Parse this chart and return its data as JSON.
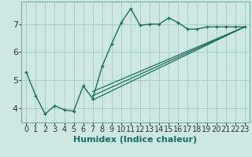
{
  "xlabel": "Humidex (Indice chaleur)",
  "background_color": "#cde8e2",
  "grid_color": "#a8ccc8",
  "line_color": "#1a6e60",
  "xlim": [
    -0.5,
    23.5
  ],
  "ylim": [
    3.5,
    7.8
  ],
  "yticks": [
    4,
    5,
    6,
    7
  ],
  "xticks": [
    0,
    1,
    2,
    3,
    4,
    5,
    6,
    7,
    8,
    9,
    10,
    11,
    12,
    13,
    14,
    15,
    16,
    17,
    18,
    19,
    20,
    21,
    22,
    23
  ],
  "curve1_x": [
    0,
    1,
    2,
    3,
    4,
    5,
    6,
    7,
    8,
    9,
    10,
    11,
    12,
    13,
    14,
    15,
    16,
    17,
    18,
    19,
    20,
    21,
    22,
    23
  ],
  "curve1_y": [
    5.3,
    4.45,
    3.8,
    4.1,
    3.95,
    3.9,
    4.8,
    4.35,
    5.5,
    6.3,
    7.05,
    7.55,
    6.95,
    7.0,
    7.0,
    7.22,
    7.05,
    6.82,
    6.82,
    6.9,
    6.9,
    6.9,
    6.9,
    6.9
  ],
  "curve2_x": [
    7,
    23
  ],
  "curve2_y": [
    4.6,
    6.9
  ],
  "curve3_x": [
    7,
    23
  ],
  "curve3_y": [
    4.45,
    6.9
  ],
  "curve4_x": [
    7,
    23
  ],
  "curve4_y": [
    4.3,
    6.9
  ],
  "fontsize_xlabel": 8,
  "fontsize_ticks": 7
}
